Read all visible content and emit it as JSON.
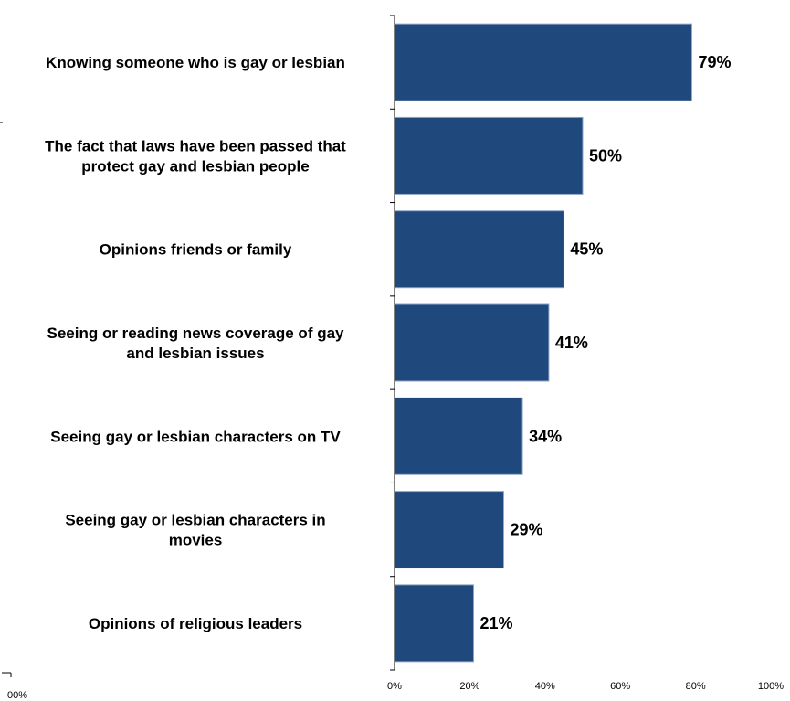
{
  "chart_data": {
    "type": "bar",
    "orientation": "horizontal",
    "categories": [
      [
        "Knowing someone who is gay or lesbian"
      ],
      [
        "The fact that laws have been passed that",
        "protect gay and lesbian people"
      ],
      [
        "Opinions friends or family"
      ],
      [
        "Seeing or reading news coverage of gay",
        "and lesbian issues"
      ],
      [
        "Seeing gay or lesbian characters on TV"
      ],
      [
        "Seeing gay or lesbian characters in",
        "movies"
      ],
      [
        "Opinions of religious leaders"
      ]
    ],
    "values": [
      79,
      50,
      45,
      41,
      34,
      29,
      21
    ],
    "value_labels": [
      "79%",
      "50%",
      "45%",
      "41%",
      "34%",
      "29%",
      "21%"
    ],
    "x_ticks": [
      "0%",
      "20%",
      "40%",
      "60%",
      "80%",
      "100%"
    ],
    "xlim": [
      0,
      100
    ],
    "bar_color": "#1f497d",
    "grid": false,
    "title": "",
    "xlabel": "",
    "ylabel": ""
  },
  "stray_tick_label": "00%"
}
